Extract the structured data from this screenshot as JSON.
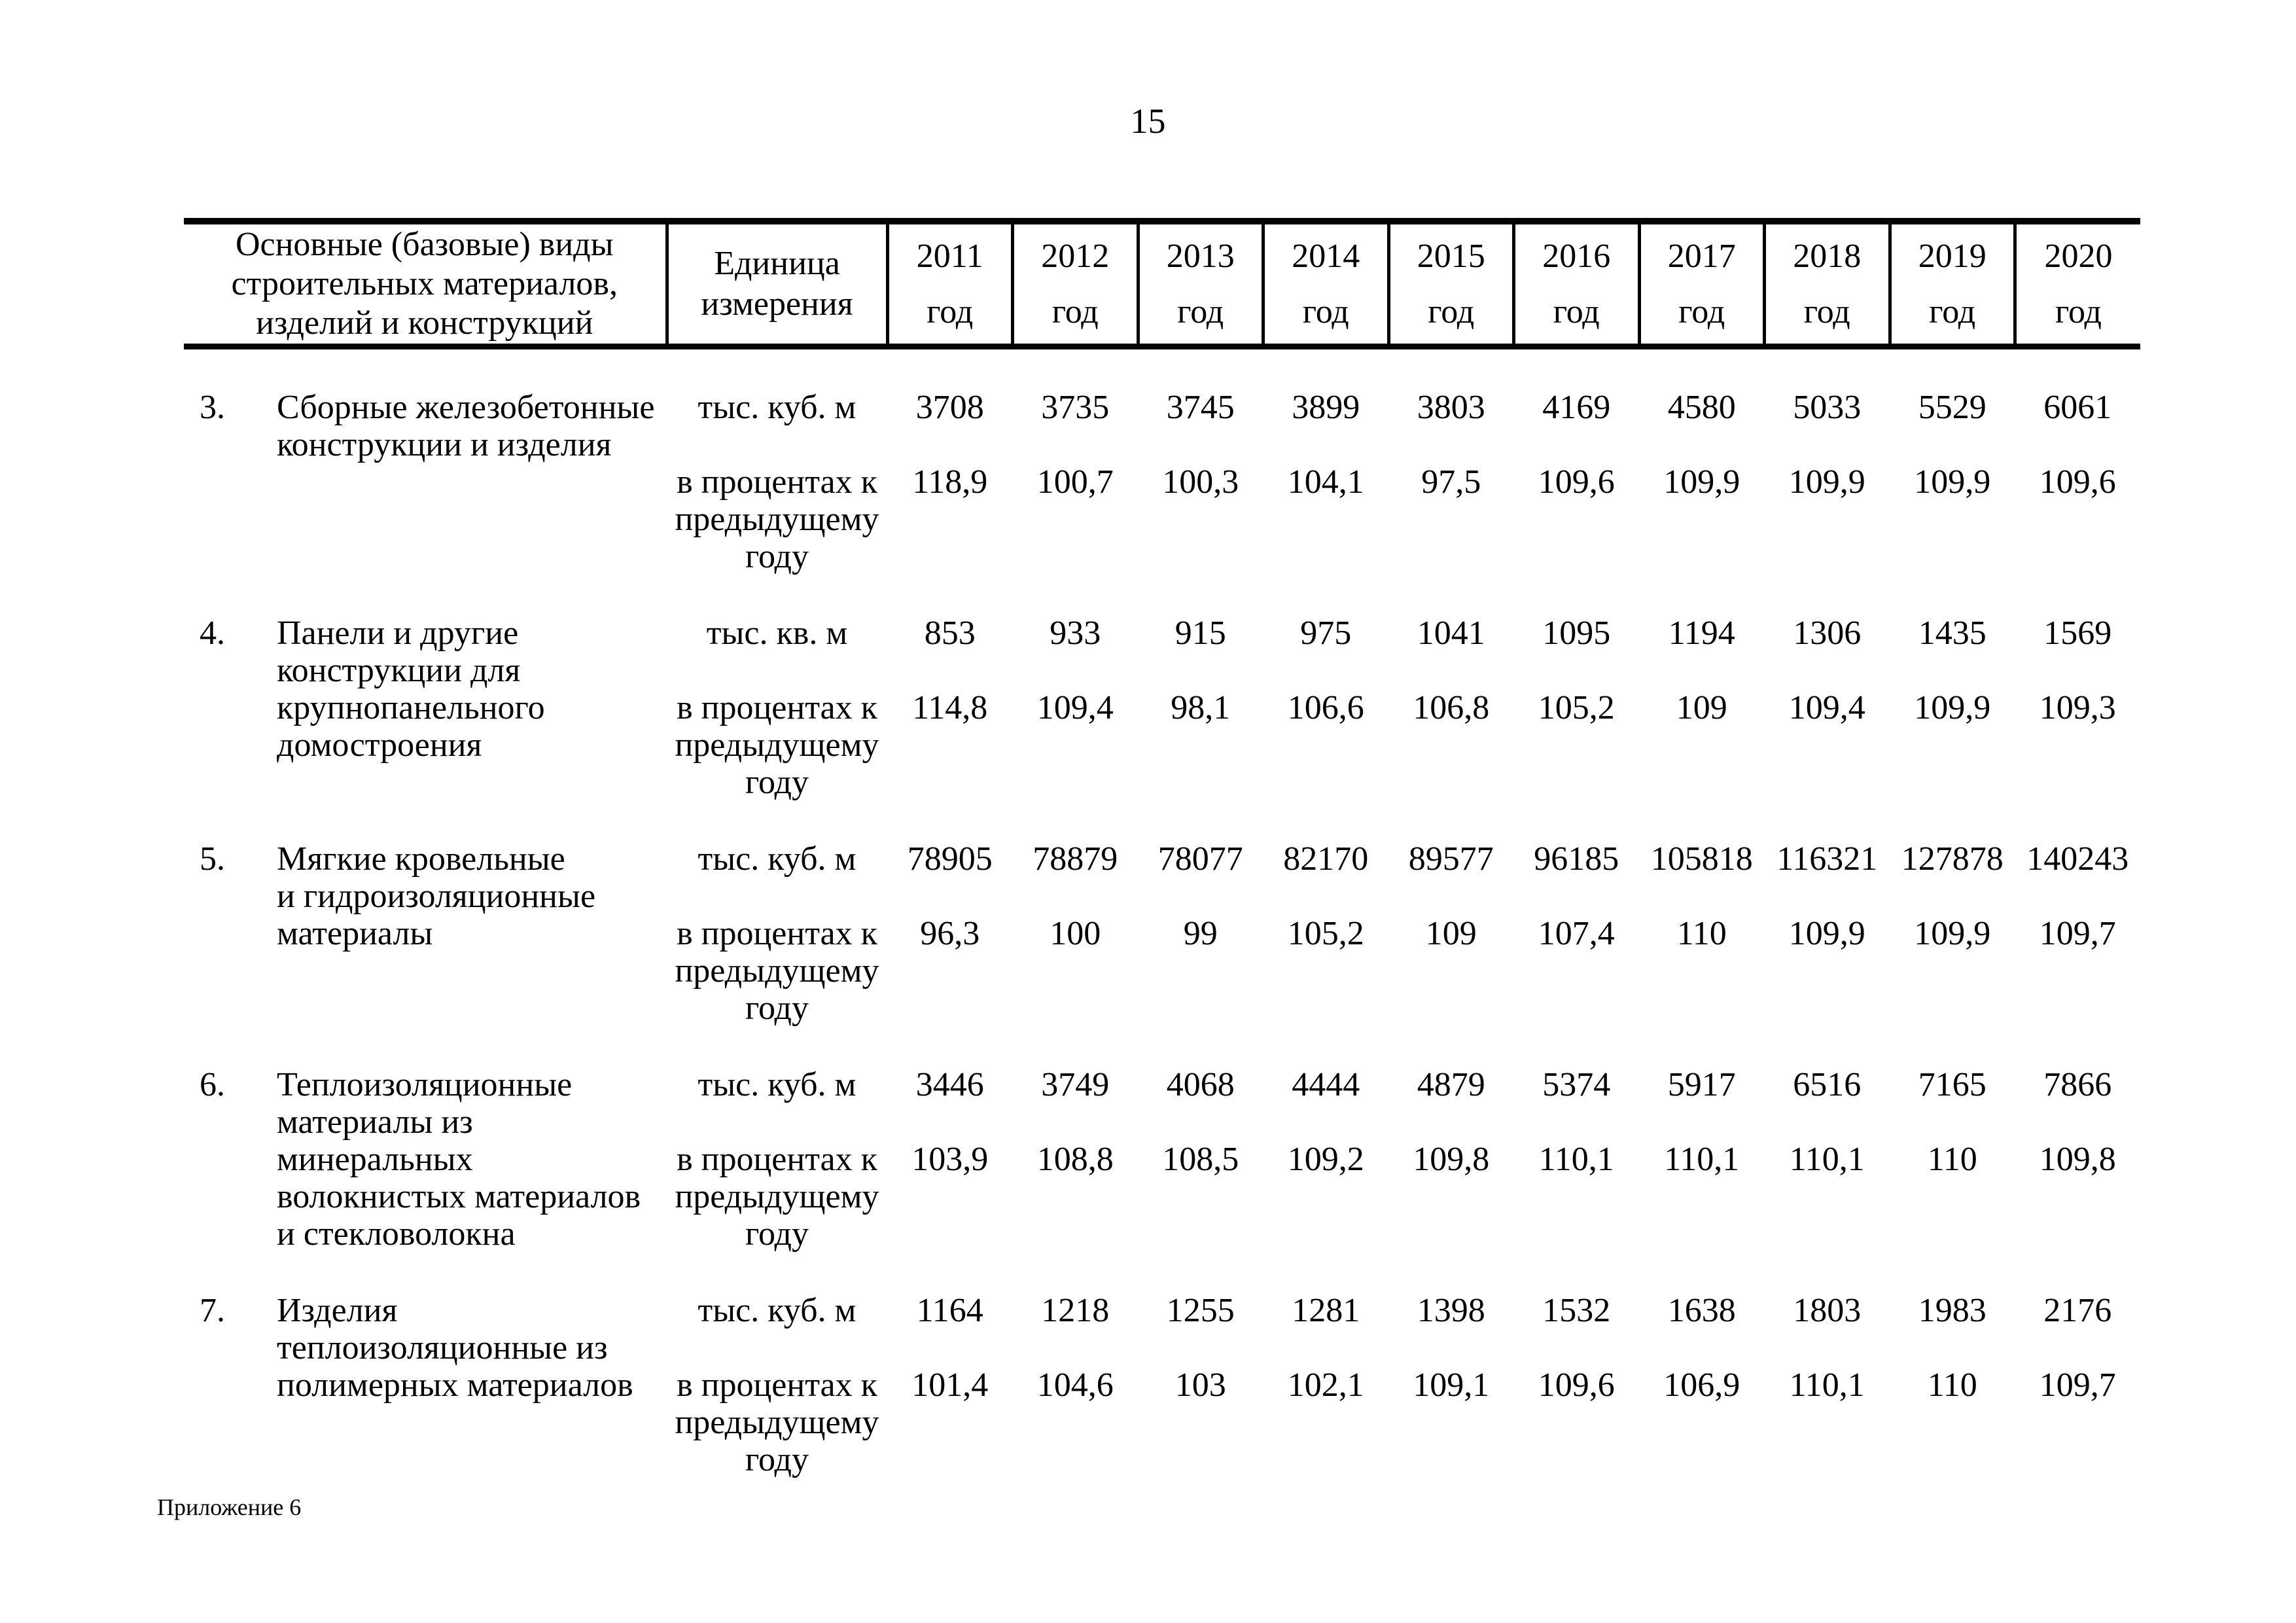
{
  "page": {
    "number": "15",
    "footnote": "Приложение 6"
  },
  "table": {
    "header": {
      "materials": "Основные (базовые) виды\nстроительных материалов,\nизделий и конструкций",
      "unit": "Единица\nизмерения",
      "year_word": "год",
      "years": [
        "2011",
        "2012",
        "2013",
        "2014",
        "2015",
        "2016",
        "2017",
        "2018",
        "2019",
        "2020"
      ]
    },
    "rows": [
      {
        "num": "3.",
        "name_top": "Сборные железобетонные\nконструкции и изделия",
        "name_bottom": "",
        "unit_physical": "тыс. куб. м",
        "unit_percent": "в процентах к\nпредыдущему\nгоду",
        "values": [
          "3708",
          "3735",
          "3745",
          "3899",
          "3803",
          "4169",
          "4580",
          "5033",
          "5529",
          "6061"
        ],
        "percents": [
          "118,9",
          "100,7",
          "100,3",
          "104,1",
          "97,5",
          "109,6",
          "109,9",
          "109,9",
          "109,9",
          "109,6"
        ]
      },
      {
        "num": "4.",
        "name_top": "Панели и другие\nконструкции для",
        "name_bottom": "крупнопанельного\nдомостроения",
        "unit_physical": "тыс. кв. м",
        "unit_percent": "в процентах к\nпредыдущему\nгоду",
        "values": [
          "853",
          "933",
          "915",
          "975",
          "1041",
          "1095",
          "1194",
          "1306",
          "1435",
          "1569"
        ],
        "percents": [
          "114,8",
          "109,4",
          "98,1",
          "106,6",
          "106,8",
          "105,2",
          "109",
          "109,4",
          "109,9",
          "109,3"
        ]
      },
      {
        "num": "5.",
        "name_top": "Мягкие кровельные\nи гидроизоляционные",
        "name_bottom": "материалы",
        "unit_physical": "тыс. куб. м",
        "unit_percent": "в процентах к\nпредыдущему\nгоду",
        "values": [
          "78905",
          "78879",
          "78077",
          "82170",
          "89577",
          "96185",
          "105818",
          "116321",
          "127878",
          "140243"
        ],
        "percents": [
          "96,3",
          "100",
          "99",
          "105,2",
          "109",
          "107,4",
          "110",
          "109,9",
          "109,9",
          "109,7"
        ]
      },
      {
        "num": "6.",
        "name_top": "Теплоизоляционные\nматериалы из",
        "name_bottom": "минеральных\nволокнистых материалов\nи стекловолокна",
        "unit_physical": "тыс. куб. м",
        "unit_percent": "в процентах к\nпредыдущему\nгоду",
        "values": [
          "3446",
          "3749",
          "4068",
          "4444",
          "4879",
          "5374",
          "5917",
          "6516",
          "7165",
          "7866"
        ],
        "percents": [
          "103,9",
          "108,8",
          "108,5",
          "109,2",
          "109,8",
          "110,1",
          "110,1",
          "110,1",
          "110",
          "109,8"
        ]
      },
      {
        "num": "7.",
        "name_top": "Изделия\nтеплоизоляционные из",
        "name_bottom": "полимерных материалов",
        "unit_physical": "тыс. куб. м",
        "unit_percent": "в процентах к\nпредыдущему\nгоду",
        "values": [
          "1164",
          "1218",
          "1255",
          "1281",
          "1398",
          "1532",
          "1638",
          "1803",
          "1983",
          "2176"
        ],
        "percents": [
          "101,4",
          "104,6",
          "103",
          "102,1",
          "109,1",
          "109,6",
          "106,9",
          "110,1",
          "110",
          "109,7"
        ]
      }
    ]
  }
}
